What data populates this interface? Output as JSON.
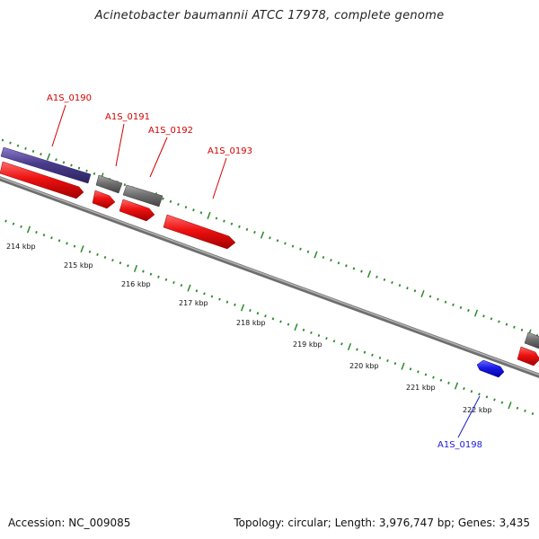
{
  "title": "Acinetobacter baumannii ATCC 17978, complete genome",
  "footer": {
    "accession": "Accession: NC_009085",
    "topology": "Topology: circular; Length: 3,976,747 bp; Genes: 3,435"
  },
  "scale_labels": [
    "214 kbp",
    "215 kbp",
    "216 kbp",
    "217 kbp",
    "218 kbp",
    "219 kbp",
    "220 kbp",
    "221 kbp",
    "222 kbp"
  ],
  "gene_labels": [
    {
      "text": "A1S_0190",
      "color": "#d40000"
    },
    {
      "text": "A1S_0191",
      "color": "#d40000"
    },
    {
      "text": "A1S_0192",
      "color": "#d40000"
    },
    {
      "text": "A1S_0193",
      "color": "#d40000"
    },
    {
      "text": "A1S_0198",
      "color": "#1a1ad6"
    }
  ],
  "colors": {
    "forward_cds": "#ee1111",
    "reverse_cds": "#1a1ae6",
    "purple_feature": "#4a3c8c",
    "gray_feature": "#707070",
    "tick": "#2a8a2a",
    "backbone": "#808080"
  }
}
